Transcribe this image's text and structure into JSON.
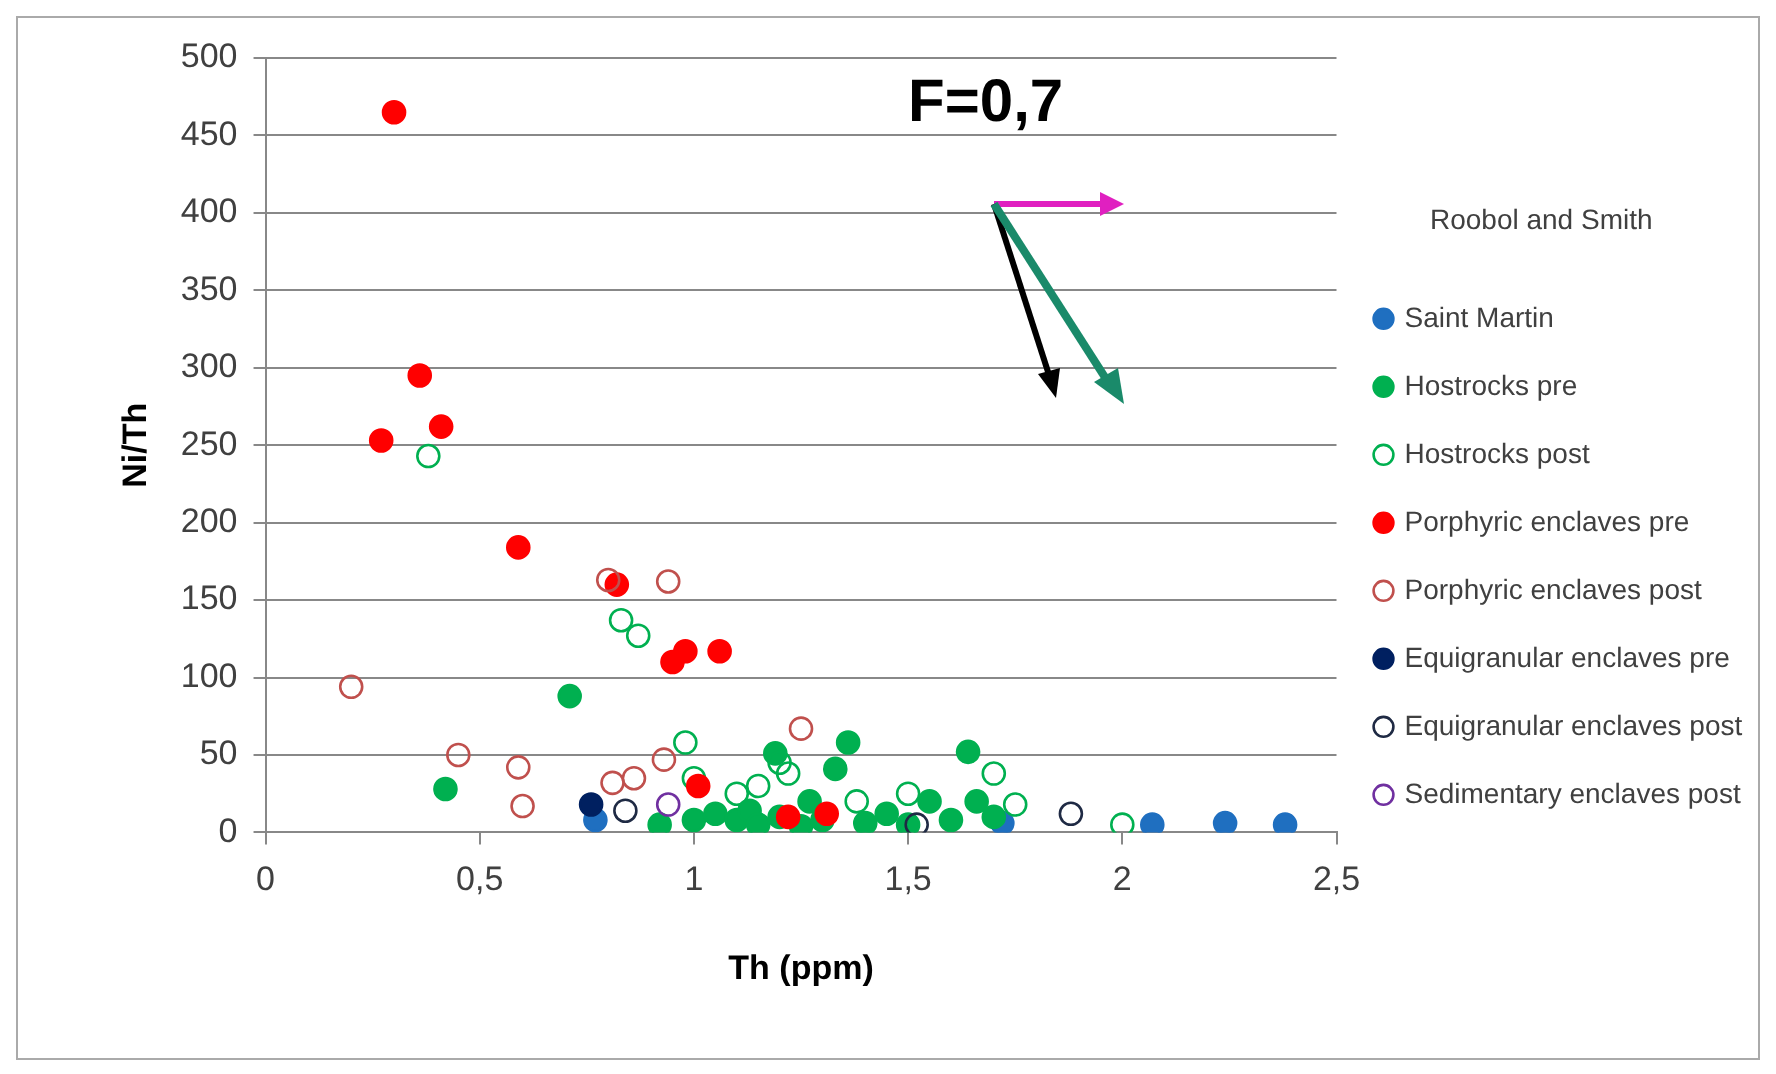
{
  "chart_data": {
    "type": "scatter",
    "xlabel": "Th (ppm)",
    "ylabel": "Ni/Th",
    "legend_title": "Roobol and Smith",
    "legend": "right",
    "grid": "y",
    "marker": "circle",
    "xlim": [
      0,
      2.5
    ],
    "xticks": [
      0,
      {
        "value": 0.5,
        "label": "0,5"
      },
      1,
      {
        "value": 1.5,
        "label": "1,5"
      },
      2,
      {
        "value": 2.5,
        "label": "2,5"
      }
    ],
    "ylim": [
      0,
      500
    ],
    "yticks": [
      0,
      50,
      100,
      150,
      200,
      250,
      300,
      350,
      400,
      450,
      500
    ],
    "annotations": [
      "F=0,7"
    ],
    "series": [
      {
        "name": "Saint Martin",
        "color": "#1f6fc0",
        "x": [
          0.77,
          1.72,
          2.07,
          2.24,
          2.38
        ],
        "values": [
          8,
          6,
          5,
          6,
          5
        ]
      },
      {
        "name": "Hostrocks pre",
        "color": "#00b050",
        "x": [
          0.42,
          0.71,
          0.92,
          1.0,
          1.05,
          1.1,
          1.13,
          1.15,
          1.19,
          1.2,
          1.25,
          1.27,
          1.3,
          1.33,
          1.36,
          1.4,
          1.45,
          1.5,
          1.55,
          1.6,
          1.64,
          1.66,
          1.7
        ],
        "values": [
          28,
          88,
          5,
          8,
          12,
          8,
          14,
          5,
          51,
          10,
          4,
          20,
          8,
          41,
          58,
          6,
          12,
          5,
          20,
          8,
          52,
          20,
          10
        ]
      },
      {
        "name": "Hostrocks post",
        "color": "#00b050",
        "marker": "circle-open",
        "x": [
          0.38,
          0.83,
          0.87,
          0.98,
          1.0,
          1.1,
          1.15,
          1.2,
          1.22,
          1.38,
          1.5,
          1.7,
          1.75,
          2.0
        ],
        "values": [
          243,
          137,
          127,
          58,
          35,
          25,
          30,
          45,
          38,
          20,
          25,
          38,
          18,
          5
        ]
      },
      {
        "name": "Porphyric enclaves pre",
        "color": "#ff0000",
        "x": [
          0.3,
          0.36,
          0.27,
          0.41,
          0.59,
          0.82,
          0.95,
          0.98,
          1.06,
          1.01,
          1.22,
          1.31
        ],
        "values": [
          465,
          295,
          253,
          262,
          184,
          160,
          110,
          117,
          117,
          30,
          10,
          12
        ]
      },
      {
        "name": "Porphyric enclaves post",
        "color": "#c0504d",
        "marker": "circle-open",
        "x": [
          0.2,
          0.45,
          0.59,
          0.6,
          0.8,
          0.94,
          0.81,
          0.86,
          0.93,
          1.25
        ],
        "values": [
          94,
          50,
          42,
          17,
          163,
          162,
          32,
          35,
          47,
          67
        ]
      },
      {
        "name": "Equigranular enclaves pre",
        "color": "#002060",
        "x": [
          0.76
        ],
        "values": [
          18
        ]
      },
      {
        "name": "Equigranular enclaves post",
        "color": "#1f2a44",
        "marker": "circle-open",
        "x": [
          0.84,
          1.52,
          1.88
        ],
        "values": [
          14,
          5,
          12
        ]
      },
      {
        "name": "Sedimentary enclaves post",
        "color": "#7030a0",
        "marker": "circle-open",
        "x": [
          0.94
        ],
        "values": [
          18
        ]
      }
    ]
  }
}
